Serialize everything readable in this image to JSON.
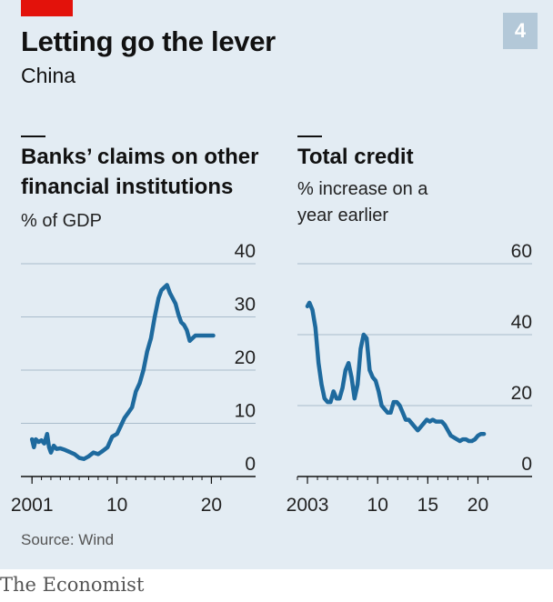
{
  "header": {
    "title": "Letting go the lever",
    "subtitle": "China",
    "chart_number": "4",
    "source": "Source: Wind",
    "brand": "The Economist"
  },
  "colors": {
    "line": "#1e6a9e",
    "background": "#e3ecf3",
    "accent_red": "#e3120b",
    "badge": "#b3c8d8"
  },
  "chart_data": [
    {
      "type": "line",
      "title": "Banks’ claims on other financial institutions",
      "ylabel": "% of GDP",
      "ylim": [
        0,
        40
      ],
      "yticks": [
        0,
        10,
        20,
        30,
        40
      ],
      "xlim": [
        2000.5,
        2021.5
      ],
      "xticks": [
        {
          "v": 2001,
          "label": "2001"
        },
        {
          "v": 2010,
          "label": "10"
        },
        {
          "v": 2020,
          "label": "20"
        }
      ],
      "grid": true,
      "x": [
        2001.0,
        2001.2,
        2001.4,
        2001.7,
        2002.0,
        2002.3,
        2002.6,
        2002.8,
        2003.0,
        2003.3,
        2003.6,
        2004.0,
        2004.5,
        2005.0,
        2005.5,
        2006.0,
        2006.5,
        2007.0,
        2007.5,
        2008.0,
        2008.5,
        2009.0,
        2009.5,
        2010.0,
        2010.4,
        2010.8,
        2011.2,
        2011.6,
        2012.0,
        2012.4,
        2012.8,
        2013.2,
        2013.6,
        2014.0,
        2014.4,
        2014.7,
        2015.0,
        2015.3,
        2015.6,
        2015.9,
        2016.2,
        2016.5,
        2016.8,
        2017.1,
        2017.4,
        2017.7,
        2018.0,
        2018.3,
        2018.6,
        2018.9,
        2019.2,
        2019.5,
        2019.8,
        2020.2
      ],
      "y": [
        7,
        5.5,
        7,
        6.5,
        6.8,
        6.2,
        8,
        5.5,
        4.5,
        5.8,
        5.2,
        5.3,
        5,
        4.6,
        4.2,
        3.5,
        3.3,
        3.8,
        4.5,
        4.2,
        4.8,
        5.5,
        7.5,
        8,
        9.5,
        11,
        12,
        13,
        16,
        17.5,
        20,
        23.5,
        26,
        30,
        33.5,
        35,
        35.5,
        36,
        34.5,
        33.5,
        32.5,
        30.5,
        29,
        28.5,
        27.5,
        25.5,
        26,
        26.5,
        26.5,
        26.5,
        26.5,
        26.5,
        26.5,
        26.5
      ]
    },
    {
      "type": "line",
      "title": "Total credit",
      "ylabel": "% increase on a year earlier",
      "ylim": [
        0,
        60
      ],
      "yticks": [
        0,
        20,
        40,
        60
      ],
      "xlim": [
        2002.0,
        2021.5
      ],
      "xticks": [
        {
          "v": 2003,
          "label": "2003"
        },
        {
          "v": 2010,
          "label": "10"
        },
        {
          "v": 2015,
          "label": "15"
        },
        {
          "v": 2020,
          "label": "20"
        }
      ],
      "grid": true,
      "x": [
        2003.0,
        2003.2,
        2003.5,
        2003.8,
        2004.1,
        2004.4,
        2004.7,
        2005.0,
        2005.3,
        2005.6,
        2005.9,
        2006.2,
        2006.5,
        2006.8,
        2007.1,
        2007.4,
        2007.7,
        2008.0,
        2008.3,
        2008.6,
        2008.9,
        2009.2,
        2009.5,
        2009.8,
        2010.1,
        2010.4,
        2010.7,
        2011.0,
        2011.3,
        2011.6,
        2011.9,
        2012.2,
        2012.5,
        2012.8,
        2013.1,
        2013.4,
        2013.7,
        2014.0,
        2014.3,
        2014.6,
        2014.9,
        2015.2,
        2015.5,
        2015.8,
        2016.1,
        2016.4,
        2016.7,
        2017.0,
        2017.3,
        2017.6,
        2017.9,
        2018.2,
        2018.5,
        2018.8,
        2019.1,
        2019.4,
        2019.7,
        2020.0,
        2020.3,
        2020.6
      ],
      "y": [
        48,
        49,
        47,
        42,
        32,
        26,
        22,
        21,
        21,
        24,
        22,
        22,
        25,
        30,
        32,
        28,
        22,
        26,
        36,
        40,
        39,
        30,
        28,
        27,
        24,
        20,
        19,
        18,
        18,
        21,
        21,
        20,
        18,
        16,
        16,
        15,
        14,
        13,
        14,
        15,
        16,
        15.5,
        16,
        15.5,
        15.5,
        15.5,
        14.5,
        13,
        11.5,
        11,
        10.5,
        10,
        10.5,
        10.5,
        10,
        10,
        10.5,
        11.5,
        12,
        12
      ]
    }
  ]
}
